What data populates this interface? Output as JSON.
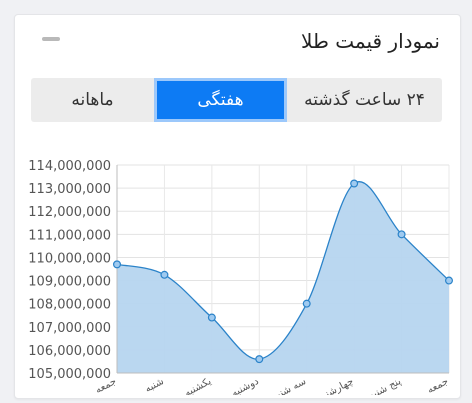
{
  "widget": {
    "title": "نمودار قیمت طلا",
    "minimize_icon": "minus-icon"
  },
  "tabs": [
    {
      "label": "۲۴ ساعت گذشته",
      "active": false
    },
    {
      "label": "هفتگی",
      "active": true
    },
    {
      "label": "ماهانه",
      "active": false
    }
  ],
  "colors": {
    "accent": "#0d7bf4",
    "series_line": "#2b83c9",
    "series_fill": "#b6d5ef"
  },
  "chart_data": {
    "type": "area",
    "categories": [
      "جمعه",
      "شنبه",
      "یکشنبه",
      "دوشنبه",
      "سه شنبه",
      "چهارشنبه",
      "پنج شنبه",
      "جمعه"
    ],
    "values": [
      109700000,
      109250000,
      107400000,
      105600000,
      108000000,
      113200000,
      111000000,
      109000000
    ],
    "yticks": [
      "114,000,000",
      "113,000,000",
      "112,000,000",
      "111,000,000",
      "110,000,000",
      "109,000,000",
      "108,000,000",
      "107,000,000",
      "106,000,000",
      "105,000,000"
    ],
    "ylim": [
      105000000,
      114000000
    ],
    "grid": true,
    "legend": "none"
  }
}
